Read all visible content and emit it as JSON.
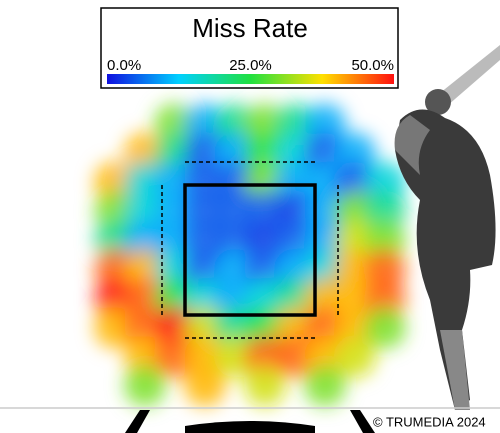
{
  "chart_data": {
    "type": "heatmap",
    "title": "Miss Rate",
    "colorscale": [
      "#1010e0",
      "#00d0ff",
      "#20e040",
      "#ffe000",
      "#ff1010"
    ],
    "clim": [
      0,
      50
    ],
    "cticks": [
      {
        "value": 0,
        "label": "0.0%"
      },
      {
        "value": 25,
        "label": "25.0%"
      },
      {
        "value": 50,
        "label": "50.0%"
      }
    ],
    "values": [
      [
        null,
        null,
        30,
        10,
        20,
        30,
        20,
        10,
        null,
        null
      ],
      [
        null,
        40,
        20,
        5,
        10,
        25,
        15,
        5,
        10,
        null
      ],
      [
        40,
        15,
        10,
        5,
        5,
        30,
        10,
        10,
        5,
        15
      ],
      [
        30,
        15,
        10,
        5,
        5,
        5,
        3,
        10,
        30,
        20
      ],
      [
        20,
        10,
        10,
        5,
        5,
        3,
        5,
        10,
        35,
        30
      ],
      [
        45,
        40,
        15,
        5,
        10,
        5,
        10,
        15,
        40,
        45
      ],
      [
        50,
        45,
        25,
        15,
        10,
        15,
        20,
        40,
        40,
        45
      ],
      [
        40,
        45,
        50,
        35,
        20,
        25,
        40,
        45,
        40,
        30
      ],
      [
        null,
        40,
        45,
        40,
        35,
        45,
        45,
        40,
        35,
        null
      ],
      [
        null,
        30,
        null,
        40,
        null,
        35,
        null,
        30,
        null,
        null
      ]
    ],
    "credit": "© TRUMEDIA 2024"
  }
}
